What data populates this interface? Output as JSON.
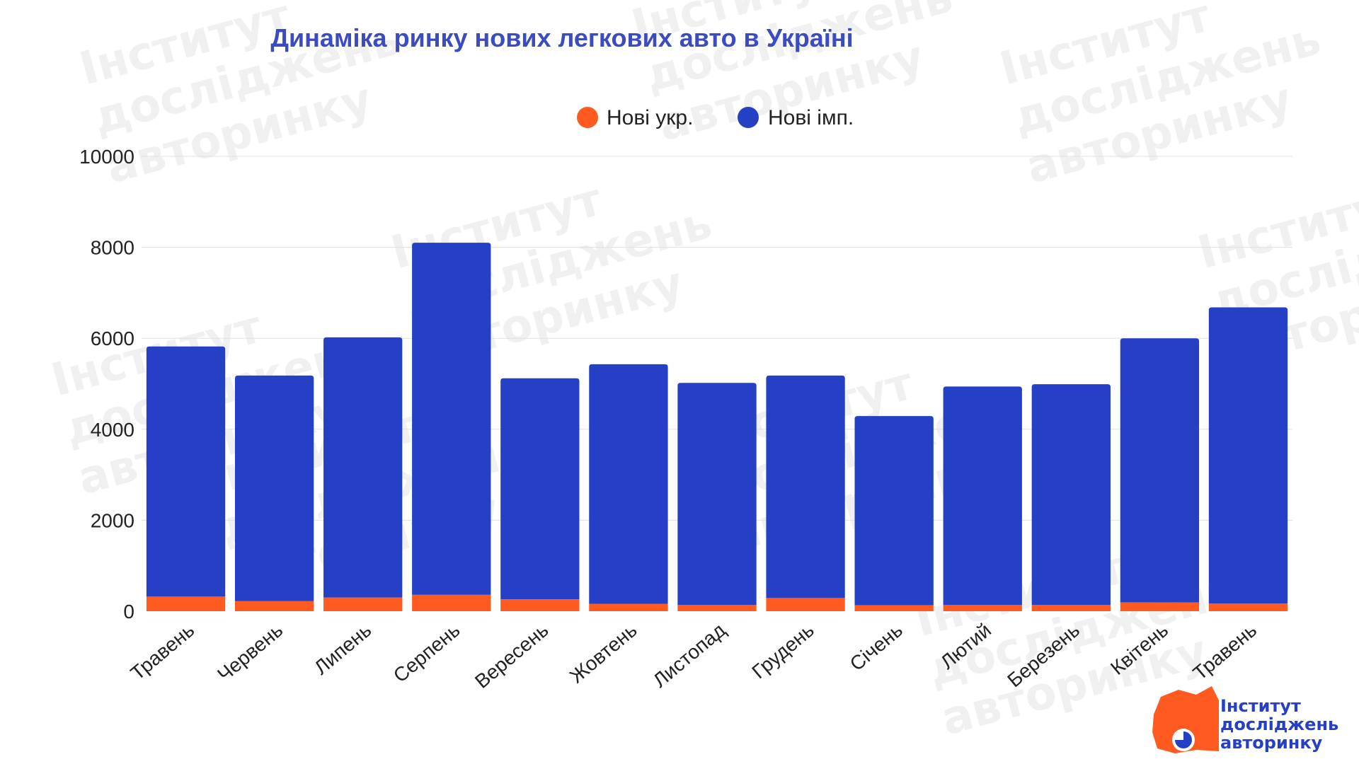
{
  "chart_data": {
    "type": "bar",
    "stacked": true,
    "title": "Динаміка ринку нових легкових авто в Україні",
    "categories": [
      "Травень",
      "Червень",
      "Липень",
      "Серпень",
      "Вересень",
      "Жовтень",
      "Листопад",
      "Грудень",
      "Січень",
      "Лютий",
      "Березень",
      "Квітень",
      "Травень"
    ],
    "series": [
      {
        "name": "Нові укр.",
        "color": "#FF5A1F",
        "values": [
          320,
          220,
          300,
          360,
          260,
          160,
          140,
          290,
          130,
          140,
          140,
          190,
          170
        ]
      },
      {
        "name": "Нові імп.",
        "color": "#2540C4",
        "values": [
          5500,
          4960,
          5720,
          7740,
          4860,
          5270,
          4880,
          4890,
          4160,
          4800,
          4850,
          5810,
          6510
        ]
      }
    ],
    "yticks": [
      0,
      2000,
      4000,
      6000,
      8000,
      10000
    ],
    "ylim": [
      0,
      10000
    ],
    "legend_position": "top-center",
    "grid": true,
    "xlabel": "",
    "ylabel": ""
  },
  "watermark": {
    "lines": [
      "Інститут",
      "досліджень",
      "авторинку"
    ]
  },
  "logo": {
    "lines": [
      "Інститут",
      "досліджень",
      "авторинку"
    ],
    "accent": "#FF5A1F",
    "text_color": "#2540C4"
  },
  "colors": {
    "title": "#3B4CC0",
    "grid": "#E0E0E0",
    "axis_text": "#222222"
  }
}
